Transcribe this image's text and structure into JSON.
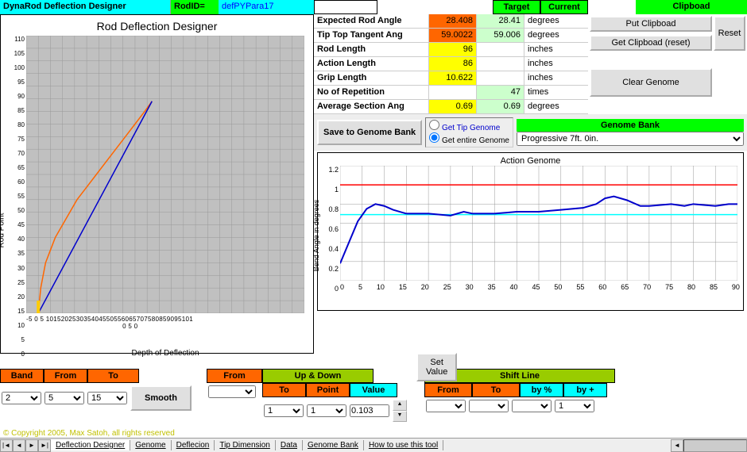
{
  "header": {
    "title": "DynaRod Deflection Designer",
    "rodid_label": "RodID=",
    "rodid_value": "defPYPara17",
    "target_hdr": "Target",
    "current_hdr": "Current",
    "clipboard_hdr": "Clipboad"
  },
  "params": [
    {
      "label": "Expected Rod Angle",
      "target": "28.408",
      "target_bg": "#ff6600",
      "current": "28.41",
      "current_bg": "#ccffcc",
      "unit": "degrees"
    },
    {
      "label": "Tip Top Tangent Ang",
      "target": "59.0022",
      "target_bg": "#ff6600",
      "current": "59.006",
      "current_bg": "#ccffcc",
      "unit": "degrees"
    },
    {
      "label": "Rod Length",
      "target": "96",
      "target_bg": "#ffff00",
      "current": "",
      "current_bg": "#ffffff",
      "unit": "inches"
    },
    {
      "label": "Action Length",
      "target": "86",
      "target_bg": "#ffff00",
      "current": "",
      "current_bg": "#ffffff",
      "unit": "inches"
    },
    {
      "label": "Grip Length",
      "target": "10.622",
      "target_bg": "#ffff00",
      "current": "",
      "current_bg": "#ffffff",
      "unit": "inches"
    },
    {
      "label": "No of Repetition",
      "target": "",
      "target_bg": "#ffffff",
      "current": "47",
      "current_bg": "#ccffcc",
      "unit": "times"
    },
    {
      "label": "Average Section Ang",
      "target": "0.69",
      "target_bg": "#ffff00",
      "current": "0.69",
      "current_bg": "#ccffcc",
      "unit": "degrees"
    }
  ],
  "buttons": {
    "put_clipboard": "Put Clipboad",
    "get_clipboard": "Get Clipboad (reset)",
    "reset": "Reset",
    "clear_genome": "Clear Genome",
    "save_genome": "Save to Genome Bank",
    "set_value": "Set Value",
    "smooth": "Smooth"
  },
  "radio": {
    "tip": "Get Tip Genome",
    "entire": "Get entire Genome"
  },
  "genome_bank": {
    "header": "Genome Bank",
    "selected": "Progressive 7ft. 0in."
  },
  "chart1": {
    "title": "Rod Deflection Designer",
    "ylabel": "Rod Point",
    "xlabel": "Depth of Deflection",
    "yticks": [
      110,
      105,
      100,
      95,
      90,
      85,
      80,
      75,
      70,
      65,
      60,
      55,
      50,
      45,
      40,
      35,
      30,
      25,
      20,
      15,
      10,
      5,
      0
    ],
    "xticks_text": "-5 0 5 101520253035404550556065707580859095101\n                                                0 5 0",
    "ylim": [
      0,
      110
    ],
    "xlim": [
      -5,
      110
    ],
    "orange_line": [
      [
        0,
        0
      ],
      [
        0.5,
        5
      ],
      [
        1,
        10
      ],
      [
        2,
        15
      ],
      [
        3,
        20
      ],
      [
        5,
        25
      ],
      [
        7,
        30
      ],
      [
        10,
        35
      ],
      [
        13,
        40
      ],
      [
        16,
        45
      ],
      [
        20,
        50
      ],
      [
        24,
        55
      ],
      [
        28,
        60
      ],
      [
        32,
        65
      ],
      [
        36,
        70
      ],
      [
        40,
        75
      ],
      [
        44,
        80
      ],
      [
        47,
        84
      ]
    ],
    "blue_line": [
      [
        0,
        0
      ],
      [
        47,
        84
      ]
    ],
    "colors": {
      "orange": "#ff6600",
      "blue": "#0000cc",
      "bg": "#c0c0c0"
    }
  },
  "chart2": {
    "title": "Action Genome",
    "ylabel": "Bend Angle in degrees",
    "yticks": [
      1.2,
      1,
      0.8,
      0.6,
      0.4,
      0.2,
      0
    ],
    "xticks": [
      0,
      5,
      10,
      15,
      20,
      25,
      30,
      35,
      40,
      45,
      50,
      55,
      60,
      65,
      70,
      75,
      80,
      85,
      90
    ],
    "ylim": [
      0,
      1.2
    ],
    "xlim": [
      0,
      90
    ],
    "red_line_y": 1.0,
    "cyan_line_y": 0.69,
    "blue_series": [
      [
        0,
        0.18
      ],
      [
        2,
        0.4
      ],
      [
        4,
        0.62
      ],
      [
        6,
        0.75
      ],
      [
        8,
        0.8
      ],
      [
        10,
        0.78
      ],
      [
        12,
        0.74
      ],
      [
        15,
        0.7
      ],
      [
        18,
        0.7
      ],
      [
        20,
        0.7
      ],
      [
        25,
        0.68
      ],
      [
        28,
        0.72
      ],
      [
        30,
        0.7
      ],
      [
        35,
        0.7
      ],
      [
        40,
        0.72
      ],
      [
        45,
        0.72
      ],
      [
        50,
        0.74
      ],
      [
        55,
        0.76
      ],
      [
        58,
        0.8
      ],
      [
        60,
        0.86
      ],
      [
        62,
        0.88
      ],
      [
        65,
        0.84
      ],
      [
        68,
        0.78
      ],
      [
        70,
        0.78
      ],
      [
        75,
        0.8
      ],
      [
        78,
        0.78
      ],
      [
        80,
        0.8
      ],
      [
        85,
        0.78
      ],
      [
        88,
        0.8
      ],
      [
        90,
        0.8
      ]
    ],
    "colors": {
      "red": "#ff0000",
      "cyan": "#00ffff",
      "blue": "#0000cc"
    }
  },
  "controls": {
    "band": {
      "hdr": "Band",
      "val": "2"
    },
    "from1": {
      "hdr": "From",
      "val": "5"
    },
    "to1": {
      "hdr": "To",
      "val": "15"
    },
    "from2": {
      "hdr": "From",
      "val": ""
    },
    "updown": {
      "hdr": "Up & Down"
    },
    "to2": {
      "hdr": "To",
      "val": "1"
    },
    "point": {
      "hdr": "Point",
      "val": "1"
    },
    "value": {
      "hdr": "Value",
      "val": "0.103"
    },
    "shift": {
      "hdr": "Shift Line"
    },
    "from3": {
      "hdr": "From",
      "val": ""
    },
    "to3": {
      "hdr": "To",
      "val": ""
    },
    "bypct": {
      "hdr": "by %",
      "val": ""
    },
    "byplus": {
      "hdr": "by +",
      "val": "1"
    }
  },
  "copyright": "© Copyright 2005, Max Satoh, all rights reserved",
  "tabs": [
    "Deflection Designer",
    "Genome",
    "Deflecion",
    "Tip Dimension",
    "Data",
    "Genome Bank",
    "How to use this tool"
  ]
}
